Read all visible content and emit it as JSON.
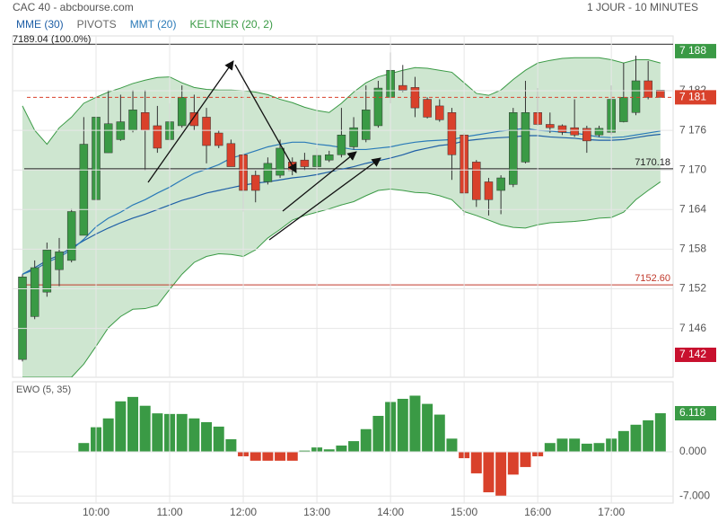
{
  "chart_data": [
    {
      "type": "candlestick",
      "title": "CAC 40 - abcbourse.com",
      "subtitle": "1 JOUR - 10 MINUTES",
      "categories": [
        null,
        null,
        null,
        null,
        null,
        null,
        "10:00",
        null,
        null,
        null,
        null,
        null,
        "11:00",
        null,
        null,
        null,
        null,
        null,
        "12:00",
        null,
        null,
        null,
        null,
        null,
        "13:00",
        null,
        null,
        null,
        null,
        null,
        "14:00",
        null,
        null,
        null,
        null,
        null,
        "15:00",
        null,
        null,
        null,
        null,
        null,
        "16:00",
        null,
        null,
        null,
        null,
        null,
        "17:00",
        null,
        null,
        null,
        null
      ],
      "open": [
        7141.3,
        7147.8,
        7151.5,
        7154.9,
        7156.3,
        7160.1,
        7165.5,
        7172.6,
        7174.6,
        7176.0,
        7178.7,
        7176.7,
        7174.6,
        7176.7,
        7178.7,
        7178.0,
        7175.6,
        7174.0,
        7172.3,
        7169.2,
        7168.2,
        7169.2,
        7171.2,
        7171.5,
        7170.5,
        7171.5,
        7172.3,
        7173.5,
        7174.6,
        7176.7,
        7181.0,
        7182.8,
        7182.5,
        7180.7,
        7179.7,
        7178.7,
        7175.3,
        7171.2,
        7168.2,
        7166.9,
        7167.8,
        7171.2,
        7178.7,
        7176.9,
        7176.7,
        7176.4,
        7176.3,
        7175.3,
        7175.7,
        7177.3,
        7178.7,
        7183.5,
        7182.1
      ],
      "high": [
        7154.2,
        7156.3,
        7159.0,
        7159.7,
        7164.1,
        7178.0,
        7178.3,
        7182.1,
        7181.4,
        7182.1,
        7182.1,
        7179.7,
        7180.1,
        7182.8,
        7181.4,
        7179.4,
        7176.0,
        7174.6,
        7172.6,
        7169.9,
        7171.9,
        7174.6,
        7171.9,
        7172.6,
        7173.3,
        7172.9,
        7179.4,
        7178.0,
        7182.8,
        7183.5,
        7187.8,
        7185.9,
        7184.1,
        7181.0,
        7180.7,
        7179.4,
        7175.6,
        7171.5,
        7168.8,
        7169.2,
        7179.4,
        7183.5,
        7182.4,
        7178.7,
        7176.9,
        7180.7,
        7176.7,
        7176.7,
        7182.8,
        7186.2,
        7187.3,
        7186.5,
        7182.1
      ],
      "low": [
        7141.0,
        7147.4,
        7150.8,
        7152.4,
        7156.0,
        7160.1,
        7165.5,
        7172.6,
        7174.4,
        7175.7,
        7169.9,
        7172.6,
        7174.2,
        7176.4,
        7176.0,
        7171.0,
        7173.3,
        7170.5,
        7163.7,
        7165.1,
        7167.8,
        7168.8,
        7169.2,
        7169.9,
        7169.9,
        7171.2,
        7171.9,
        7173.1,
        7174.2,
        7176.4,
        7180.1,
        7181.8,
        7178.0,
        7177.8,
        7177.3,
        7168.5,
        7163.1,
        7164.4,
        7163.1,
        7163.3,
        7167.4,
        7171.0,
        7176.7,
        7175.6,
        7175.3,
        7175.0,
        7172.6,
        7175.0,
        7175.3,
        7177.2,
        7178.3,
        7180.7,
        7181.0
      ],
      "close": [
        7153.8,
        7155.2,
        7157.9,
        7157.6,
        7163.7,
        7173.9,
        7178.0,
        7177.0,
        7177.3,
        7179.1,
        7176.0,
        7173.3,
        7177.3,
        7181.0,
        7176.7,
        7173.7,
        7173.7,
        7170.5,
        7166.9,
        7166.9,
        7171.0,
        7173.3,
        7169.9,
        7170.5,
        7172.2,
        7172.3,
        7175.3,
        7176.4,
        7179.1,
        7182.4,
        7185.1,
        7182.1,
        7179.4,
        7178.0,
        7177.6,
        7172.3,
        7166.5,
        7165.5,
        7165.5,
        7168.8,
        7178.7,
        7178.7,
        7176.9,
        7176.4,
        7175.7,
        7175.3,
        7174.4,
        7176.3,
        7180.7,
        7181.0,
        7183.5,
        7181.0,
        7181.0
      ],
      "up_color": "#3a9a45",
      "down_color": "#d9412b",
      "series": [
        {
          "name": "MME (30)",
          "color": "#1f5fa6",
          "values": [
            7154.2,
            7155.2,
            7156.3,
            7157.1,
            7158.2,
            7159.3,
            7160.3,
            7161.2,
            7162.0,
            7162.7,
            7163.3,
            7164.0,
            7164.7,
            7165.4,
            7165.9,
            7166.5,
            7166.9,
            7167.3,
            7167.7,
            7168.0,
            7168.2,
            7168.5,
            7168.8,
            7169.0,
            7169.3,
            7169.7,
            7170.1,
            7170.5,
            7171.0,
            7171.4,
            7171.8,
            7172.3,
            7172.9,
            7173.3,
            7173.7,
            7173.9,
            7174.4,
            7174.6,
            7174.8,
            7174.9,
            7175.0,
            7175.2,
            7175.2,
            7175.0,
            7174.9,
            7174.8,
            7174.6,
            7174.5,
            7174.5,
            7174.6,
            7174.9,
            7175.2,
            7175.4
          ]
        },
        {
          "name": "MMT (20)",
          "color": "#2a7ab8",
          "values": [
            7154.2,
            7154.9,
            7156.0,
            7156.8,
            7157.9,
            7159.5,
            7161.4,
            7162.7,
            7163.6,
            7164.7,
            7165.5,
            7166.5,
            7167.4,
            7168.5,
            7169.5,
            7170.1,
            7170.8,
            7171.8,
            7172.3,
            7172.9,
            7173.5,
            7173.9,
            7174.2,
            7174.2,
            7173.9,
            7173.7,
            7173.4,
            7173.1,
            7173.1,
            7173.3,
            7173.5,
            7173.9,
            7174.2,
            7174.4,
            7174.5,
            7174.6,
            7175.0,
            7175.3,
            7175.6,
            7175.9,
            7176.1,
            7176.3,
            7176.0,
            7175.9,
            7175.7,
            7175.6,
            7175.3,
            7175.0,
            7174.9,
            7175.0,
            7175.3,
            7175.6,
            7175.9
          ]
        }
      ],
      "band": {
        "name": "KELTNER (20, 2)",
        "color": "#3a9a45",
        "upper": [
          7179.7,
          7176.0,
          7173.9,
          7176.4,
          7178.0,
          7180.1,
          7181.0,
          7181.8,
          7182.4,
          7183.1,
          7183.6,
          7184.0,
          7184.1,
          7183.2,
          7182.5,
          7182.2,
          7182.1,
          7182.1,
          7182.0,
          7181.8,
          7181.4,
          7180.7,
          7180.2,
          7179.5,
          7179.0,
          7178.7,
          7180.1,
          7181.8,
          7183.2,
          7184.1,
          7184.6,
          7185.1,
          7185.5,
          7185.4,
          7185.1,
          7184.8,
          7183.2,
          7181.6,
          7181.3,
          7182.1,
          7183.7,
          7185.1,
          7186.2,
          7186.6,
          7186.9,
          7187.0,
          7187.0,
          7187.0,
          7186.7,
          7186.2,
          7186.7,
          7186.7,
          7186.2
        ],
        "lower": [
          7138.6,
          7138.6,
          7138.6,
          7138.6,
          7138.6,
          7140.6,
          7143.3,
          7146.1,
          7147.8,
          7148.9,
          7149.0,
          7149.5,
          7151.9,
          7154.2,
          7156.0,
          7156.9,
          7157.3,
          7157.2,
          7156.9,
          7157.9,
          7159.7,
          7161.0,
          7162.4,
          7163.1,
          7163.6,
          7164.1,
          7164.7,
          7165.2,
          7166.1,
          7166.9,
          7167.1,
          7166.9,
          7166.6,
          7166.5,
          7166.1,
          7165.5,
          7163.7,
          7163.1,
          7162.4,
          7161.7,
          7161.3,
          7161.2,
          7161.7,
          7162.0,
          7162.1,
          7162.2,
          7162.4,
          7162.7,
          7162.8,
          7163.6,
          7165.5,
          7166.9,
          7168.2
        ]
      },
      "pivots": {
        "name": "PIVOTS",
        "levels": [
          {
            "value": 7189.04,
            "label": "7189.04 (100.0%)",
            "color": "#222222",
            "side": "left"
          },
          {
            "value": 7170.18,
            "label": "7170.18",
            "color": "#222222",
            "side": "right"
          },
          {
            "value": 7152.6,
            "label": "7152.60",
            "color": "#c0392b",
            "side": "right"
          }
        ]
      },
      "markers": [
        {
          "value": 7188,
          "label": "7 188",
          "color": "#3a9a45"
        },
        {
          "value": 7181,
          "label": "7 181",
          "color": "#d9412b",
          "dashed": true
        },
        {
          "value": 7142,
          "label": "7 142",
          "color": "#c8102e"
        }
      ],
      "ylim": [
        7138.6,
        7190.3
      ],
      "yticks": [
        {
          "value": 7146,
          "label": "7 146"
        },
        {
          "value": 7152,
          "label": "7 152"
        },
        {
          "value": 7158,
          "label": "7 158"
        },
        {
          "value": 7164,
          "label": "7 164"
        },
        {
          "value": 7170,
          "label": "7 170"
        },
        {
          "value": 7176,
          "label": "7 176"
        },
        {
          "value": 7182,
          "label": "7 182"
        }
      ],
      "grid": true
    },
    {
      "type": "bar",
      "title": "EWO (5, 35)",
      "values": [
        null,
        null,
        null,
        null,
        null,
        1.4,
        3.9,
        5.3,
        8.0,
        8.7,
        7.3,
        6.1,
        6.0,
        6.0,
        5.3,
        4.7,
        4.0,
        2.0,
        -0.7,
        -1.4,
        -1.4,
        -1.4,
        -1.4,
        0.2,
        0.7,
        0.4,
        1.0,
        1.7,
        3.6,
        5.7,
        7.9,
        8.4,
        8.9,
        7.6,
        5.9,
        2.1,
        -1.0,
        -3.4,
        -6.4,
        -7.0,
        -3.6,
        -2.4,
        -0.7,
        1.4,
        2.1,
        2.1,
        1.3,
        1.4,
        2.1,
        3.3,
        4.3,
        5.0,
        6.118
      ],
      "up_color": "#3a9a45",
      "down_color": "#d9412b",
      "marker": {
        "value": 6.118,
        "label": "6.118",
        "color": "#3a9a45"
      },
      "ylim": [
        -8.1,
        11.1
      ],
      "yticks": [
        {
          "value": 0,
          "label": "0.000"
        },
        {
          "value": -7,
          "label": "-7.000"
        }
      ],
      "grid": true
    }
  ]
}
